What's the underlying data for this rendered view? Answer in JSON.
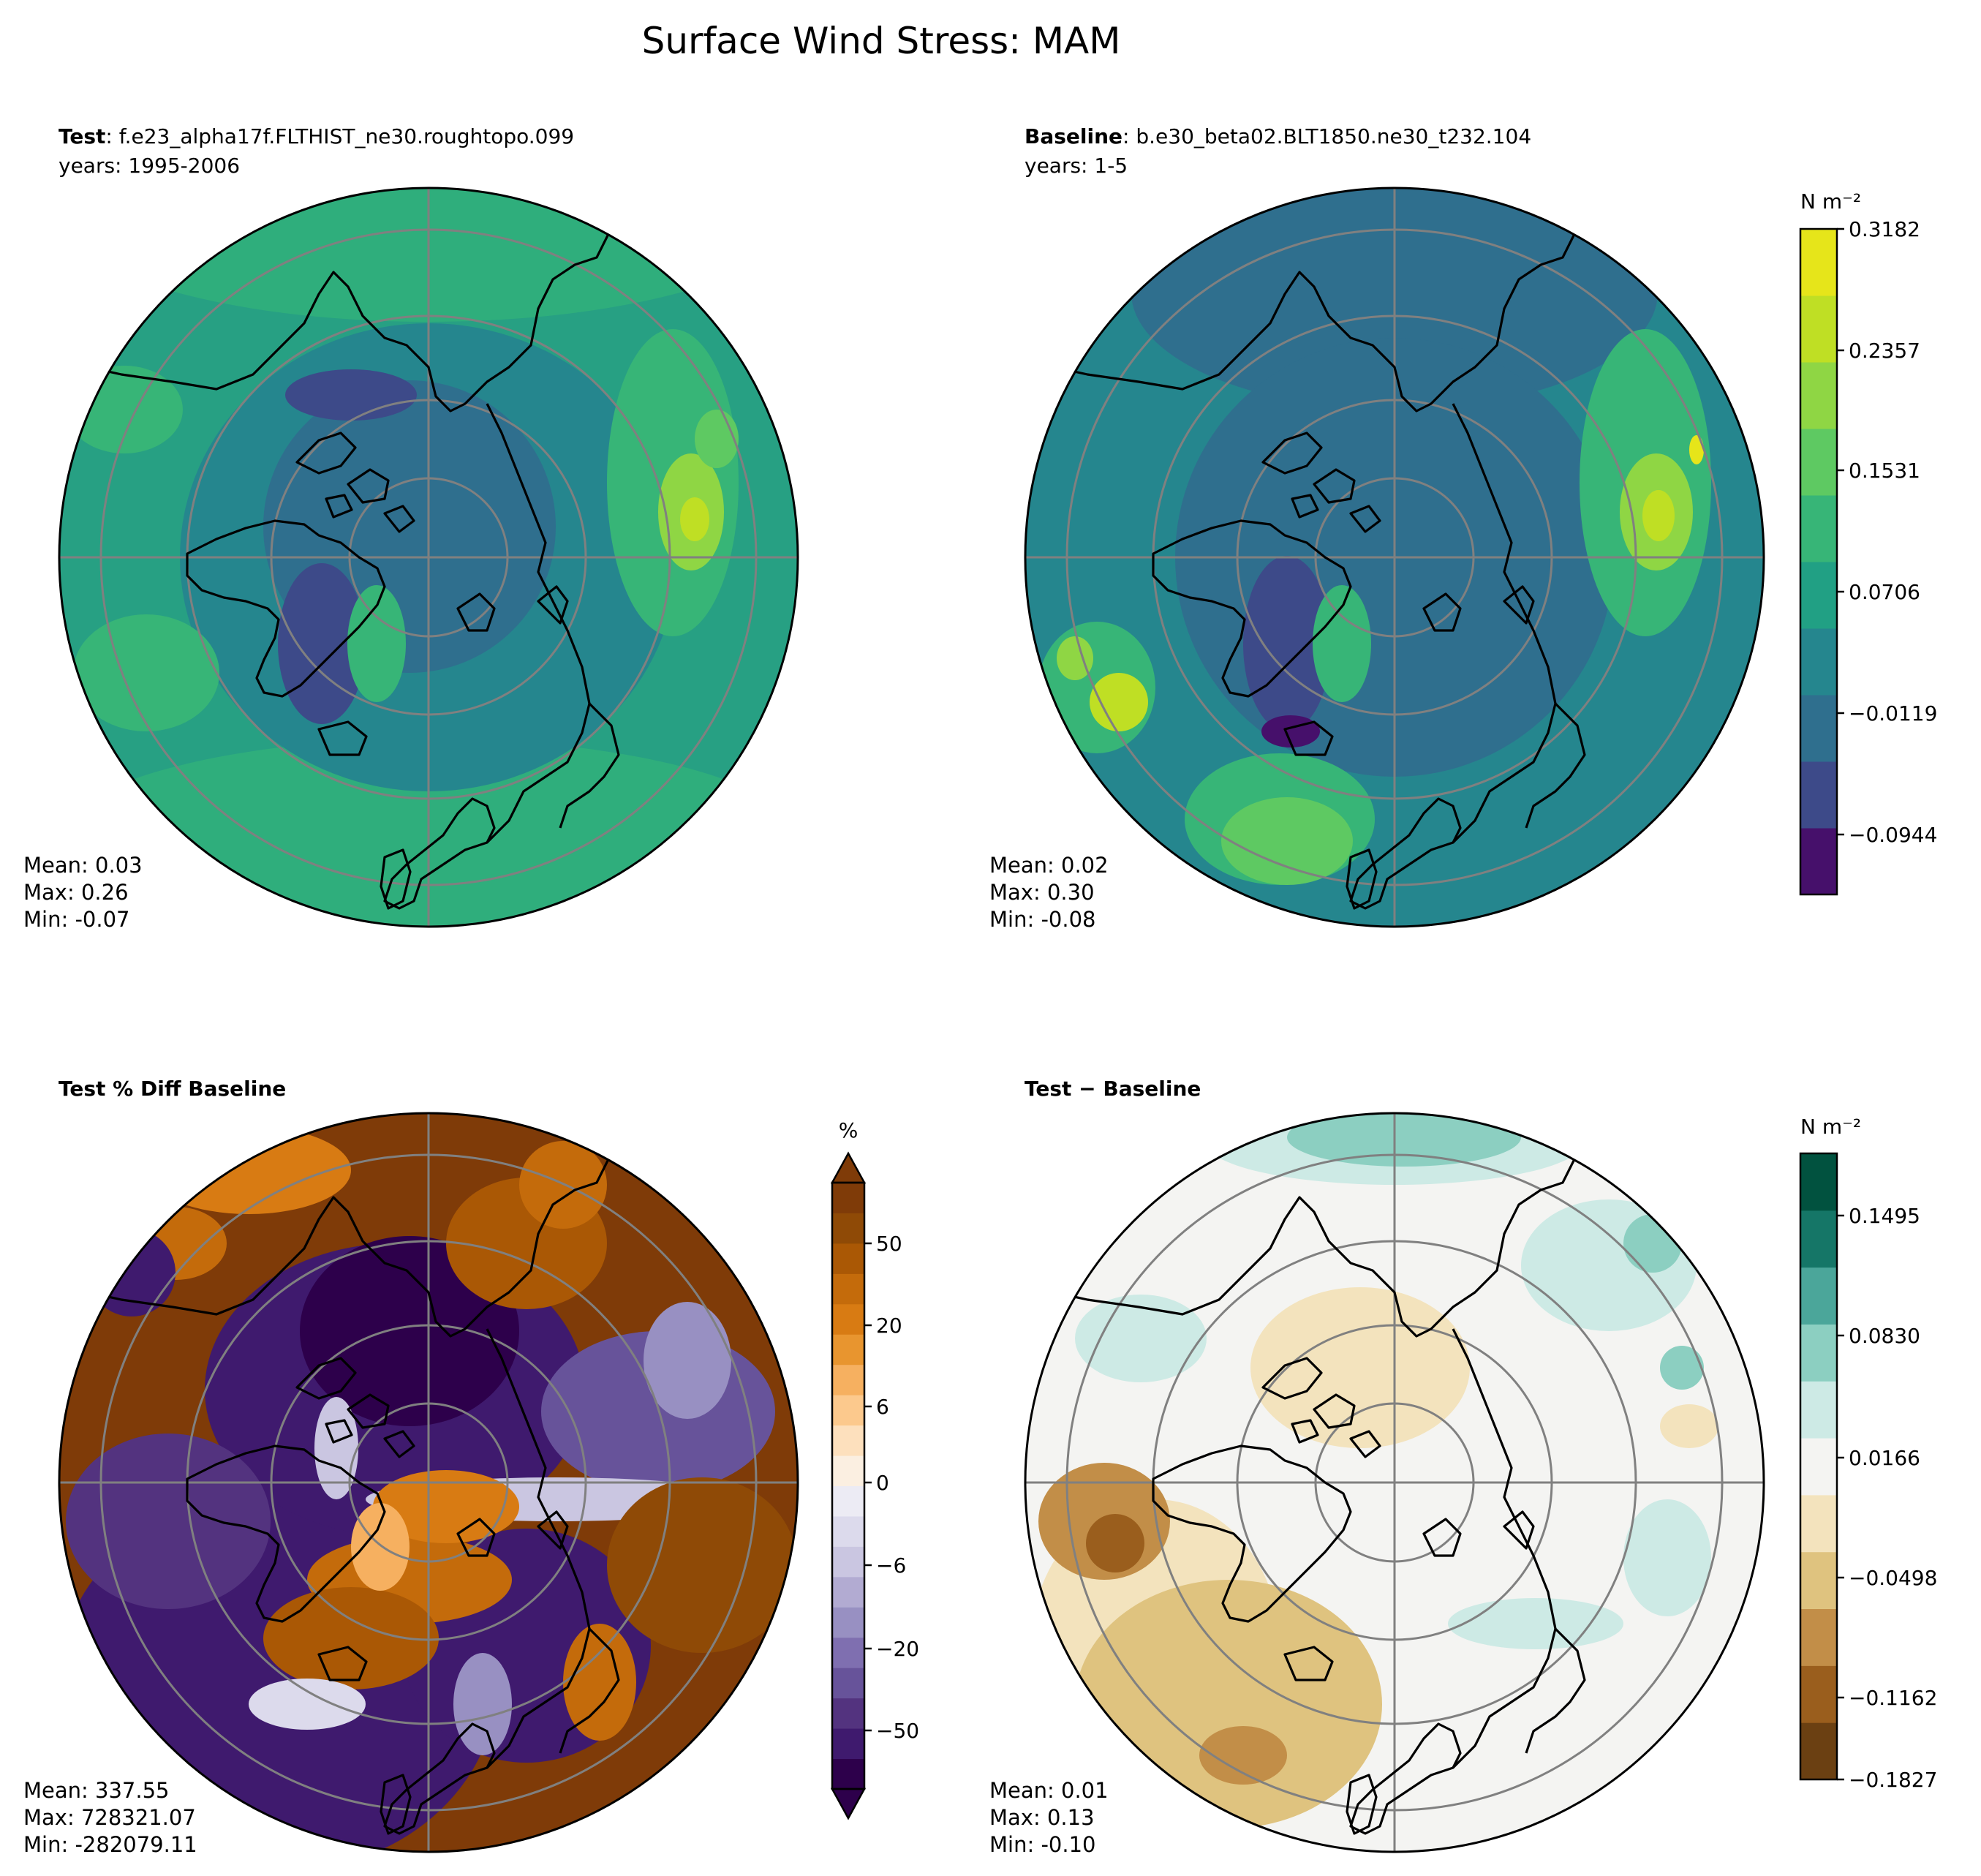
{
  "figure": {
    "title": "Surface Wind Stress: MAM"
  },
  "panels": {
    "test": {
      "label_bold": "Test",
      "label_rest": ": f.e23_alpha17f.FLTHIST_ne30.roughtopo.099",
      "years": "years: 1995-2006",
      "mean": "Mean:  0.03",
      "max": "Max:  0.26",
      "min": "Min: -0.07"
    },
    "baseline": {
      "label_bold": "Baseline",
      "label_rest": ": b.e30_beta02.BLT1850.ne30_t232.104",
      "years": "years: 1-5",
      "mean": "Mean:  0.02",
      "max": "Max:  0.30",
      "min": "Min: -0.08"
    },
    "pctdiff": {
      "label_bold": "Test % Diff Baseline",
      "mean": "Mean: 337.55",
      "max": "Max: 728321.07",
      "min": "Min: -282079.11"
    },
    "diff": {
      "label_bold": "Test − Baseline",
      "mean": "Mean:  0.01",
      "max": "Max:  0.13",
      "min": "Min: -0.10"
    }
  },
  "colorbars": {
    "main": {
      "unit": "N m⁻²",
      "ticks": [
        "0.3182",
        "0.2357",
        "0.1531",
        "0.0706",
        "−0.0119",
        "−0.0944"
      ],
      "colors": [
        "#46106b",
        "#3d4a89",
        "#2f6f8e",
        "#25868e",
        "#21a084",
        "#37b577",
        "#5ec962",
        "#8fd644",
        "#bfdf24",
        "#e6e51a"
      ]
    },
    "pct": {
      "unit": "%",
      "ticks": [
        "50",
        "20",
        "6",
        "0",
        "−6",
        "−20",
        "−50"
      ],
      "colors": [
        "#2d004b",
        "#3f1a6e",
        "#53337f",
        "#67539a",
        "#7f6fb0",
        "#9890c2",
        "#b2abd2",
        "#cac6e1",
        "#dcdaec",
        "#ecebf4",
        "#fbefe1",
        "#fde0bd",
        "#fcc98d",
        "#f6b060",
        "#e8952f",
        "#d87b13",
        "#c46b0b",
        "#aa5805",
        "#8f4a06",
        "#7f3b08"
      ]
    },
    "diff": {
      "unit": "N m⁻²",
      "ticks": [
        "0.1495",
        "0.0830",
        "0.0166",
        "−0.0498",
        "−0.1162",
        "−0.1827"
      ],
      "colors": [
        "#6b4012",
        "#9a5e1d",
        "#c28e48",
        "#dfc37f",
        "#f3e3bd",
        "#f4f4f2",
        "#cdeae5",
        "#8ccfc1",
        "#4ba69a",
        "#157667",
        "#01523f"
      ]
    }
  }
}
